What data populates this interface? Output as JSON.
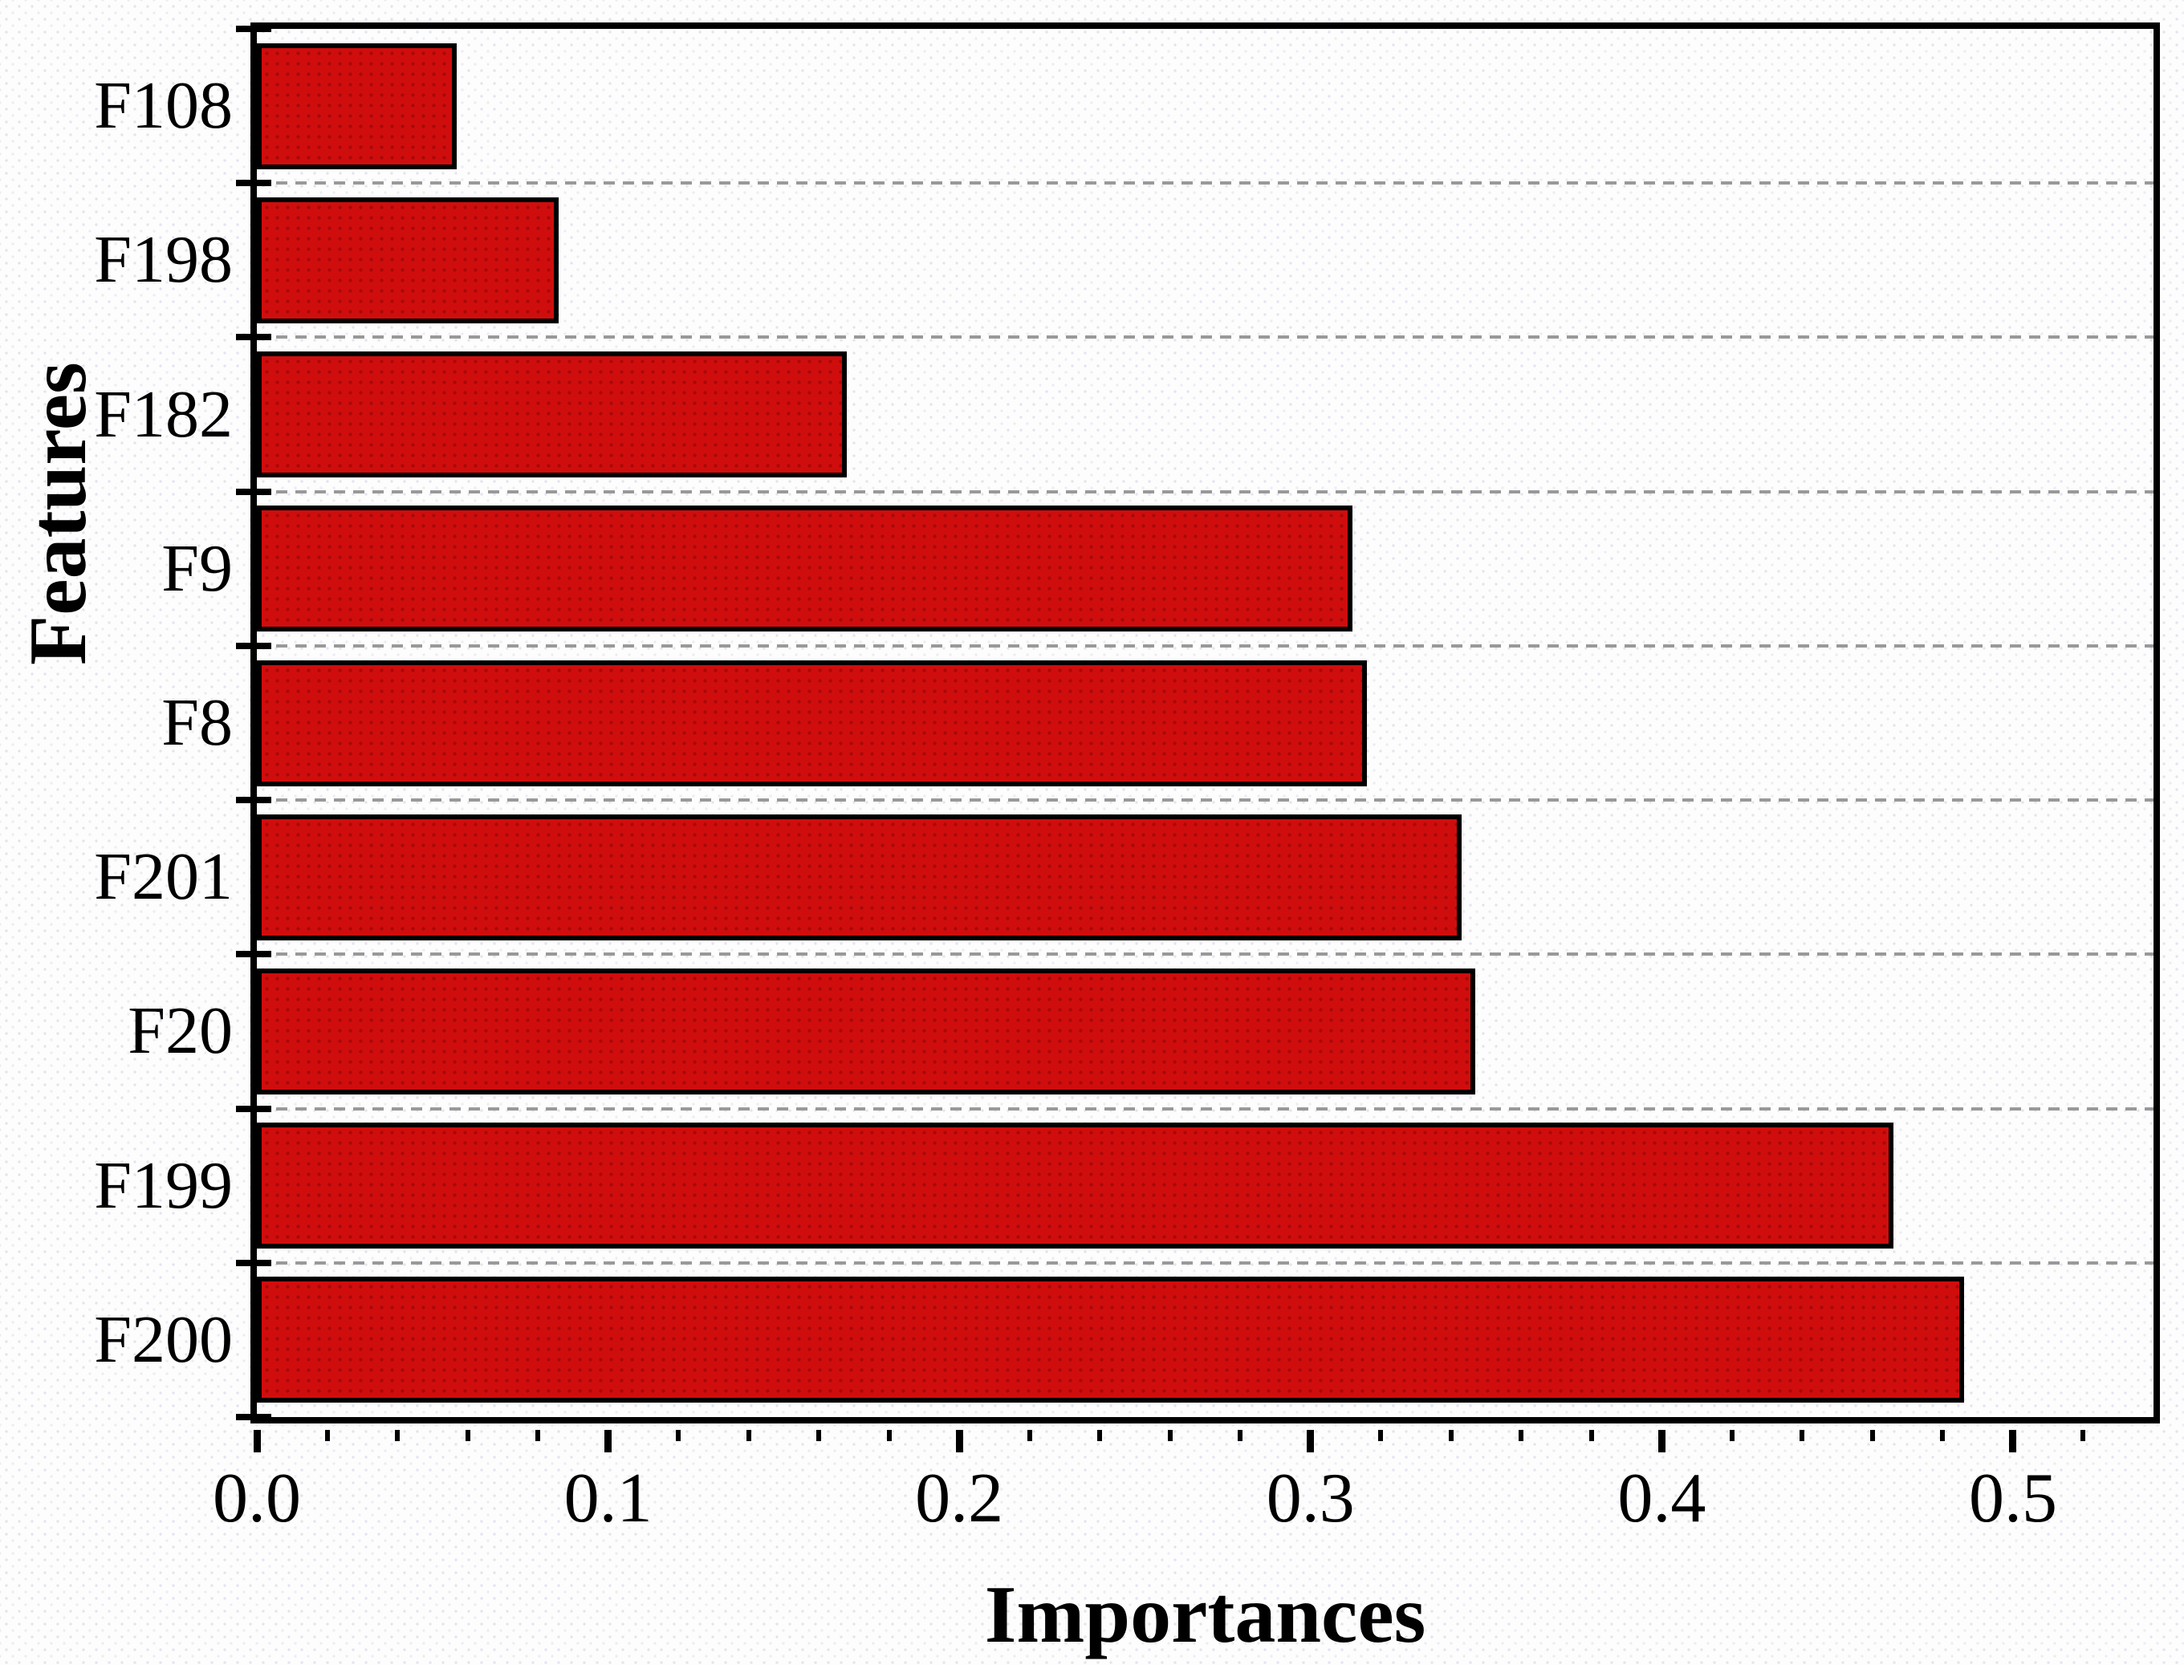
{
  "chart_data": {
    "type": "bar",
    "orientation": "horizontal",
    "title": "",
    "xlabel": "Importances",
    "ylabel": "Features",
    "categories": [
      "F108",
      "F198",
      "F182",
      "F9",
      "F8",
      "F201",
      "F20",
      "F199",
      "F200"
    ],
    "values": [
      0.057,
      0.086,
      0.168,
      0.312,
      0.316,
      0.343,
      0.347,
      0.466,
      0.486
    ],
    "xlim": [
      0,
      0.54
    ],
    "xticks": [
      0.0,
      0.1,
      0.2,
      0.3,
      0.4,
      0.5
    ],
    "xtick_labels": [
      "0.0",
      "0.1",
      "0.2",
      "0.3",
      "0.4",
      "0.5"
    ],
    "x_minor_tick_step": 0.02,
    "grid": "dashed horizontal lines at category boundaries",
    "legend": null
  },
  "colors": {
    "bar_fill": "#d00d0d",
    "bar_dot": "#a80909",
    "bar_edge": "#000000",
    "spine": "#000000",
    "grid": "#999999",
    "text": "#000000",
    "background": "#fdfdfe",
    "background_dot": "#e4e4ee"
  }
}
